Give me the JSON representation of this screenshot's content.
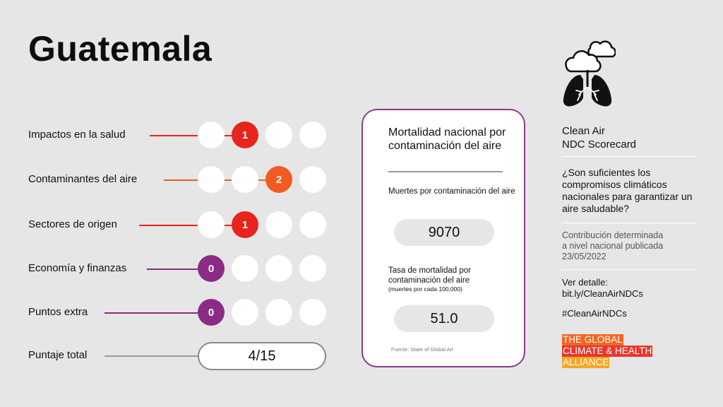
{
  "title": "Guatemala",
  "colors": {
    "red": "#e8241d",
    "orange": "#f25a22",
    "purple": "#8b2b86",
    "grey_line": "#9a9a9a"
  },
  "rows": [
    {
      "label": "Impactos en la salud",
      "score": 1,
      "color": "#e8241d"
    },
    {
      "label": "Contaminantes del aire",
      "score": 2,
      "color": "#f25a22"
    },
    {
      "label": "Sectores de origen",
      "score": 1,
      "color": "#e8241d"
    },
    {
      "label": "Economía y finanzas",
      "score": 0,
      "color": "#8b2b86"
    },
    {
      "label": "Puntos extra",
      "score": 0,
      "color": "#8b2b86"
    }
  ],
  "total": {
    "label": "Puntaje total",
    "value": "4/15"
  },
  "card": {
    "title": "Mortalidad nacional por contaminación del aire",
    "deaths_label": "Muertes por contaminación del aire",
    "deaths_value": "9070",
    "rate_label": "Tasa de mortalidad por contaminación del aire",
    "rate_note": "(muertes por cada 100,000)",
    "rate_value": "51.0",
    "source": "Fuente: State of Global Air"
  },
  "sidebar": {
    "icon": "clouds-lungs-icon",
    "title_line1": "Clean Air",
    "title_line2": "NDC Scorecard",
    "question": "¿Son suficientes los compromisos climáticos nacionales para garantizar un aire saludable?",
    "ndc_line1": "Contribución determinada",
    "ndc_line2": "a nivel nacional publicada",
    "ndc_date": "23/05/2022",
    "ver_label": "Ver detalle:",
    "ver_link": "bit.ly/CleanAirNDCs",
    "hashtag": "#CleanAirNDCs",
    "logo_line1": "THE GLOBAL",
    "logo_line2": "CLIMATE & HEALTH",
    "logo_line3": "ALLIANCE"
  }
}
